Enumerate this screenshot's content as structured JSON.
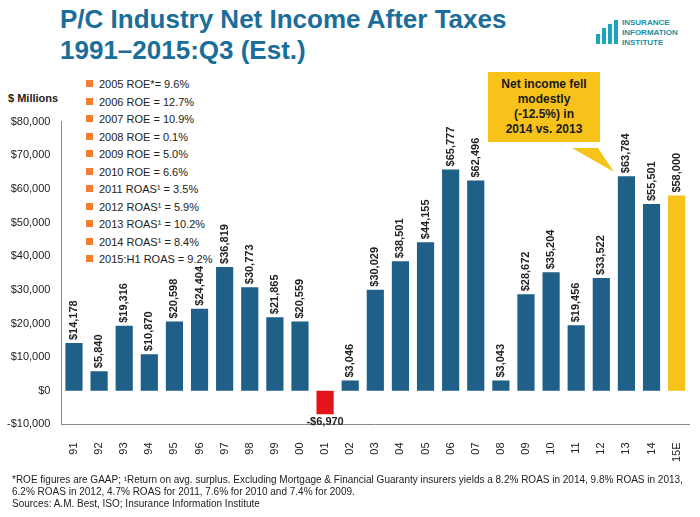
{
  "chart_data": {
    "type": "bar",
    "title": "P/C Industry Net Income After Taxes\n1991–2015:Q3 (Est.)",
    "y_label": "$ Millions",
    "categories": [
      "91",
      "92",
      "93",
      "94",
      "95",
      "96",
      "97",
      "98",
      "99",
      "00",
      "01",
      "02",
      "03",
      "04",
      "05",
      "06",
      "07",
      "08",
      "09",
      "10",
      "11",
      "12",
      "13",
      "14",
      "15E"
    ],
    "values": [
      14178,
      5840,
      19316,
      10870,
      20598,
      24404,
      36819,
      30773,
      21865,
      20559,
      -6970,
      3046,
      30029,
      38501,
      44155,
      65777,
      62496,
      3043,
      28672,
      35204,
      19456,
      33522,
      63784,
      55501,
      58000
    ],
    "value_labels": [
      "$14,178",
      "$5,840",
      "$19,316",
      "$10,870",
      "$20,598",
      "$24,404",
      "$36,819",
      "$30,773",
      "$21,865",
      "$20,559",
      "-$6,970",
      "$3,046",
      "$30,029",
      "$38,501",
      "$44,155",
      "$65,777",
      "$62,496",
      "$3,043",
      "$28,672",
      "$35,204",
      "$19,456",
      "$33,522",
      "$63,784",
      "$55,501",
      "$58,000"
    ],
    "colors": [
      "#1f5f88",
      "#1f5f88",
      "#1f5f88",
      "#1f5f88",
      "#1f5f88",
      "#1f5f88",
      "#1f5f88",
      "#1f5f88",
      "#1f5f88",
      "#1f5f88",
      "#e3151a",
      "#1f5f88",
      "#1f5f88",
      "#1f5f88",
      "#1f5f88",
      "#1f5f88",
      "#1f5f88",
      "#1f5f88",
      "#1f5f88",
      "#1f5f88",
      "#1f5f88",
      "#1f5f88",
      "#1f5f88",
      "#1f5f88",
      "#f7c21a"
    ],
    "ylim": [
      -10000,
      80000
    ],
    "yticks": [
      {
        "value": -10000,
        "label": "-$10,000"
      },
      {
        "value": 0,
        "label": "$0"
      },
      {
        "value": 10000,
        "label": "$10,000"
      },
      {
        "value": 20000,
        "label": "$20,000"
      },
      {
        "value": 30000,
        "label": "$30,000"
      },
      {
        "value": 40000,
        "label": "$40,000"
      },
      {
        "value": 50000,
        "label": "$50,000"
      },
      {
        "value": 60000,
        "label": "$60,000"
      },
      {
        "value": 70000,
        "label": "$70,000"
      },
      {
        "value": 80000,
        "label": "$80,000"
      }
    ],
    "grid": false,
    "data_labels": true,
    "annotation": "Net income fell\nmodestly\n(-12.5%) in\n2014 vs. 2013",
    "notes": [
      "2005 ROE*= 9.6%",
      "2006 ROE = 12.7%",
      "2007 ROE = 10.9%",
      "2008 ROE = 0.1%",
      "2009 ROE = 5.0%",
      "2010 ROE = 6.6%",
      "2011 ROAS¹ = 3.5%",
      "2012 ROAS¹ = 5.9%",
      "2013 ROAS¹ = 10.2%",
      "2014 ROAS¹ = 8.4%",
      "2015:H1 ROAS = 9.2%"
    ],
    "footnote": "*ROE figures are GAAP; ¹Return on avg. surplus. Excluding Mortgage & Financial Guaranty insurers yields a 8.2% ROAS in 2014, 9.8% ROAS in 2013, 6.2% ROAS in 2012, 4.7% ROAS for 2011, 7.6% for 2010 and 7.4% for 2009.",
    "source": "Sources: A.M. Best, ISO; Insurance Information Institute",
    "logo": "INSURANCE\nINFORMATION\nINSTITUTE"
  }
}
